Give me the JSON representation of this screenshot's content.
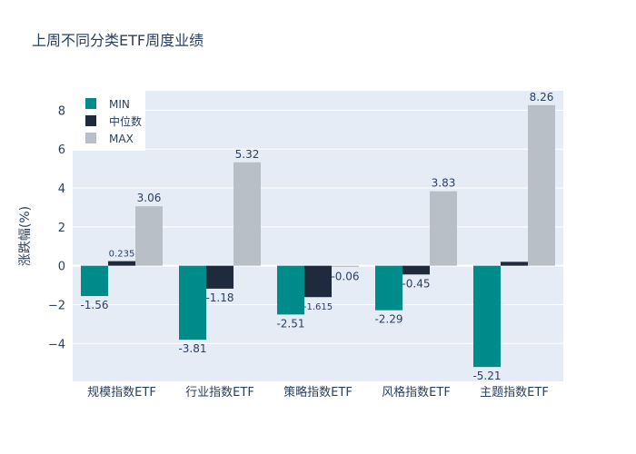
{
  "chart_data": {
    "type": "bar",
    "title": "上周不同分类ETF周度业绩",
    "xlabel": "",
    "ylabel": "涨跌幅(%)",
    "categories": [
      "规模指数ETF",
      "行业指数ETF",
      "策略指数ETF",
      "风格指数ETF",
      "主题指数ETF"
    ],
    "series": [
      {
        "name": "MIN",
        "color": "#008b8b",
        "values": [
          -1.56,
          -3.81,
          -2.51,
          -2.29,
          -5.21
        ],
        "labels": [
          "-1.56",
          "-3.81",
          "-2.51",
          "-2.29",
          "-5.21"
        ]
      },
      {
        "name": "中位数",
        "color": "#1f2a3c",
        "values": [
          0.235,
          -1.18,
          -1.615,
          -0.45,
          0.2
        ],
        "labels": [
          "0.235",
          "-1.18",
          "-1.615",
          "-0.45",
          ""
        ]
      },
      {
        "name": "MAX",
        "color": "#b8bfc7",
        "values": [
          3.06,
          5.32,
          -0.06,
          3.83,
          8.26
        ],
        "labels": [
          "3.06",
          "5.32",
          "-0.06",
          "3.83",
          "8.26"
        ]
      }
    ],
    "yticks": [
      -4,
      -2,
      0,
      2,
      4,
      6,
      8
    ],
    "ylim": [
      -5.95,
      9
    ],
    "grid": true,
    "legend_position": "top-left",
    "plot_background": "#e5ecf6"
  }
}
